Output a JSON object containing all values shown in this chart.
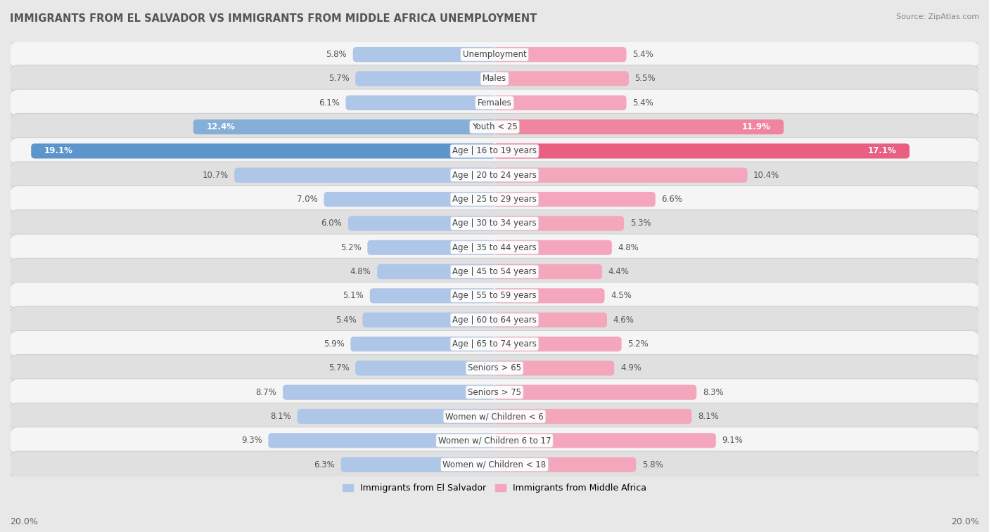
{
  "title": "IMMIGRANTS FROM EL SALVADOR VS IMMIGRANTS FROM MIDDLE AFRICA UNEMPLOYMENT",
  "source": "Source: ZipAtlas.com",
  "categories": [
    "Unemployment",
    "Males",
    "Females",
    "Youth < 25",
    "Age | 16 to 19 years",
    "Age | 20 to 24 years",
    "Age | 25 to 29 years",
    "Age | 30 to 34 years",
    "Age | 35 to 44 years",
    "Age | 45 to 54 years",
    "Age | 55 to 59 years",
    "Age | 60 to 64 years",
    "Age | 65 to 74 years",
    "Seniors > 65",
    "Seniors > 75",
    "Women w/ Children < 6",
    "Women w/ Children 6 to 17",
    "Women w/ Children < 18"
  ],
  "el_salvador": [
    5.8,
    5.7,
    6.1,
    12.4,
    19.1,
    10.7,
    7.0,
    6.0,
    5.2,
    4.8,
    5.1,
    5.4,
    5.9,
    5.7,
    8.7,
    8.1,
    9.3,
    6.3
  ],
  "middle_africa": [
    5.4,
    5.5,
    5.4,
    11.9,
    17.1,
    10.4,
    6.6,
    5.3,
    4.8,
    4.4,
    4.5,
    4.6,
    5.2,
    4.9,
    8.3,
    8.1,
    9.1,
    5.8
  ],
  "max_val": 20.0,
  "blue_normal": "#aec6e8",
  "pink_normal": "#f4a7bc",
  "blue_medium": "#85afd6",
  "pink_medium": "#f085a0",
  "blue_strong": "#5b95cc",
  "pink_strong": "#e85f82",
  "bg_color": "#e8e8e8",
  "row_bg_white": "#f5f5f5",
  "row_bg_gray": "#e0e0e0",
  "label_fontsize": 8.5,
  "title_fontsize": 10.5,
  "legend_label_left": "Immigrants from El Salvador",
  "legend_label_right": "Immigrants from Middle Africa",
  "axis_label": "20.0%",
  "highlight_rows": [
    3,
    4
  ],
  "strong_rows": [
    4
  ]
}
